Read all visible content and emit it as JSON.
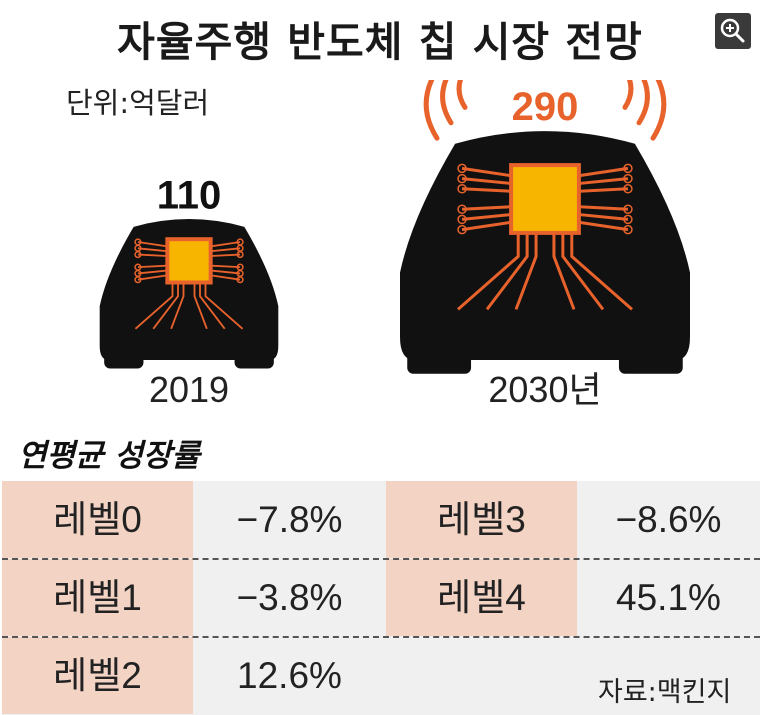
{
  "title": "자율주행 반도체 칩 시장 전망",
  "unit": "단위:억달러",
  "zoom_icon": "zoom-in-icon",
  "chart_data": {
    "type": "bar",
    "title": "자율주행 반도체 칩 시장 전망",
    "unit": "단위:억달러",
    "categories": [
      "2019",
      "2030년"
    ],
    "values": [
      110,
      290
    ],
    "value_labels": [
      "110",
      "290"
    ],
    "colors": {
      "car": "#111111",
      "chip": "#f7b500",
      "circuit": "#e8622c",
      "signal": "#e8622c"
    }
  },
  "growth": {
    "title": "연평균 성장률",
    "rows": [
      {
        "label": "레벨0",
        "value": "−7.8%"
      },
      {
        "label": "레벨1",
        "value": "−3.8%"
      },
      {
        "label": "레벨2",
        "value": "12.6%"
      },
      {
        "label": "레벨3",
        "value": "−8.6%"
      },
      {
        "label": "레벨4",
        "value": "45.1%"
      }
    ]
  },
  "source": "자료:맥킨지"
}
